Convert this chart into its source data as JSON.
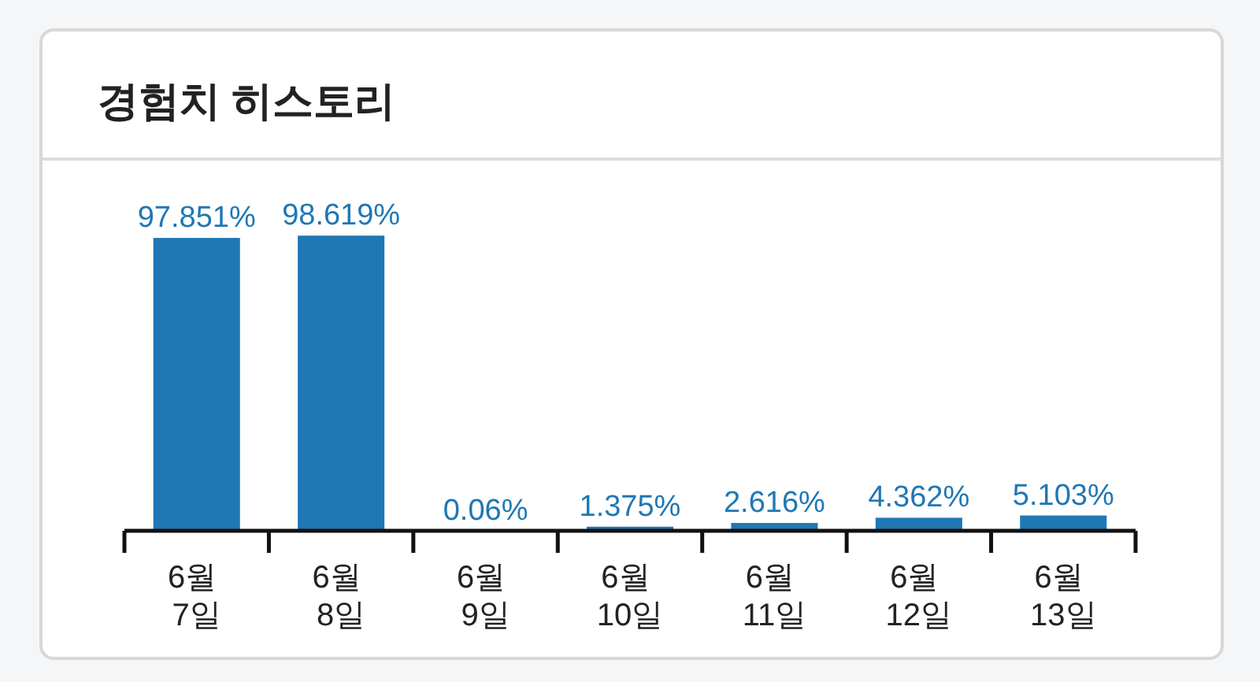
{
  "chart_data": {
    "type": "bar",
    "title": "경험치 히스토리",
    "categories": [
      "6월 7일",
      "6월 8일",
      "6월 9일",
      "6월 10일",
      "6월 11일",
      "6월 12일",
      "6월 13일"
    ],
    "values": [
      97.851,
      98.619,
      0.06,
      1.375,
      2.616,
      4.362,
      5.103
    ],
    "value_labels": [
      "97.851%",
      "98.619%",
      "0.06%",
      "1.375%",
      "2.616%",
      "4.362%",
      "5.103%"
    ],
    "color": "#1f77b4"
  }
}
